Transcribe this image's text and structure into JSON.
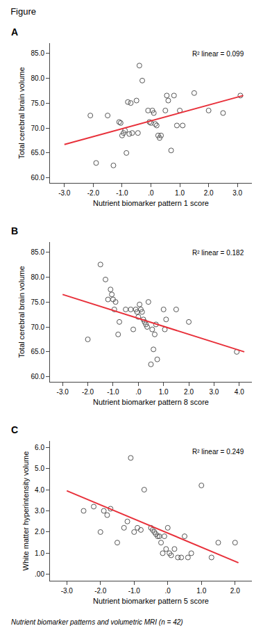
{
  "title": "Figure",
  "caption": "Nutrient biomarker patterns and volumetric MRI (n = 42)",
  "chart_data": [
    {
      "type": "scatter",
      "title": "A",
      "xlabel": "Nutrient biomarker pattern 1 score",
      "ylabel": "Total cerebral brain volume",
      "annotations": [
        "R² linear = 0.099"
      ],
      "grid": false,
      "legend": false,
      "xlim": [
        -3.5,
        3.5
      ],
      "ylim": [
        59.0,
        87.0
      ],
      "xticks": [
        {
          "value": -3.0,
          "label": "-3.0"
        },
        {
          "value": -2.0,
          "label": "-2.0"
        },
        {
          "value": -1.0,
          "label": "-1.0"
        },
        {
          "value": 0.0,
          "label": ".0"
        },
        {
          "value": 1.0,
          "label": "1.0"
        },
        {
          "value": 2.0,
          "label": "2.0"
        },
        {
          "value": 3.0,
          "label": "3.0"
        }
      ],
      "yticks": [
        {
          "value": 60.0,
          "label": "60.0"
        },
        {
          "value": 65.0,
          "label": "65.0"
        },
        {
          "value": 70.0,
          "label": "70.0"
        },
        {
          "value": 75.0,
          "label": "75.0"
        },
        {
          "value": 80.0,
          "label": "80.0"
        },
        {
          "value": 85.0,
          "label": "85.0"
        }
      ],
      "series": [
        {
          "type": "scatter",
          "marker": "circle-open",
          "color": "#555555",
          "x": [
            -2.1,
            -1.9,
            -1.5,
            -1.3,
            -1.1,
            -1.05,
            -1.0,
            -0.95,
            -0.9,
            -0.85,
            -0.8,
            -0.75,
            -0.7,
            -0.65,
            -0.5,
            -0.45,
            -0.4,
            -0.3,
            -0.1,
            -0.05,
            0.0,
            0.05,
            0.1,
            0.15,
            0.2,
            0.25,
            0.3,
            0.35,
            0.5,
            0.55,
            0.6,
            0.7,
            0.8,
            0.9,
            1.0,
            1.1,
            1.5,
            2.0,
            2.5,
            3.1
          ],
          "values": [
            72.5,
            63.0,
            72.5,
            62.5,
            71.2,
            71.0,
            68.5,
            69.0,
            69.5,
            65.0,
            75.2,
            68.8,
            75.0,
            69.0,
            75.5,
            69.0,
            82.5,
            79.5,
            73.5,
            71.2,
            71.0,
            73.5,
            73.0,
            70.8,
            70.5,
            68.5,
            68.0,
            68.5,
            73.5,
            76.5,
            75.5,
            65.5,
            76.5,
            70.5,
            73.5,
            70.5,
            77.0,
            73.5,
            73.0,
            76.5
          ]
        },
        {
          "type": "line",
          "line_style": "solid",
          "color": "#e8303a",
          "x": [
            -3.0,
            3.2
          ],
          "values": [
            66.7,
            76.5
          ]
        }
      ]
    },
    {
      "type": "scatter",
      "title": "B",
      "xlabel": "Nutrient biomarker pattern 8 score",
      "ylabel": "Total cerebral brain volume",
      "annotations": [
        "R² linear = 0.182"
      ],
      "grid": false,
      "legend": false,
      "xlim": [
        -3.5,
        4.5
      ],
      "ylim": [
        59.0,
        87.0
      ],
      "xticks": [
        {
          "value": -3.0,
          "label": "-3.0"
        },
        {
          "value": -2.0,
          "label": "-2.0"
        },
        {
          "value": -1.0,
          "label": "-1.0"
        },
        {
          "value": 0.0,
          "label": ".0"
        },
        {
          "value": 1.0,
          "label": "1.0"
        },
        {
          "value": 2.0,
          "label": "2.0"
        },
        {
          "value": 3.0,
          "label": "3.0"
        },
        {
          "value": 4.0,
          "label": "4.0"
        }
      ],
      "yticks": [
        {
          "value": 60.0,
          "label": "60.0"
        },
        {
          "value": 65.0,
          "label": "65.0"
        },
        {
          "value": 70.0,
          "label": "70.0"
        },
        {
          "value": 75.0,
          "label": "75.0"
        },
        {
          "value": 80.0,
          "label": "80.0"
        },
        {
          "value": 85.0,
          "label": "85.0"
        }
      ],
      "series": [
        {
          "type": "scatter",
          "marker": "circle-open",
          "color": "#555555",
          "x": [
            -2.0,
            -1.5,
            -1.3,
            -1.2,
            -1.1,
            -1.05,
            -1.0,
            -0.95,
            -0.9,
            -0.8,
            -0.75,
            -0.5,
            -0.3,
            -0.2,
            -0.1,
            -0.05,
            0.0,
            0.05,
            0.1,
            0.15,
            0.2,
            0.25,
            0.3,
            0.35,
            0.4,
            0.5,
            0.55,
            0.6,
            0.65,
            0.7,
            0.75,
            1.0,
            1.05,
            1.1,
            1.5,
            2.0,
            3.9
          ],
          "values": [
            67.5,
            82.5,
            79.5,
            75.5,
            77.5,
            76.5,
            75.5,
            73.5,
            75.0,
            68.5,
            71.0,
            73.5,
            73.5,
            69.5,
            73.5,
            73.0,
            72.0,
            74.5,
            73.5,
            73.0,
            71.5,
            71.0,
            70.5,
            70.0,
            75.0,
            62.5,
            69.5,
            65.5,
            68.5,
            70.5,
            63.5,
            73.5,
            69.5,
            71.5,
            73.5,
            71.0,
            65.0
          ]
        },
        {
          "type": "line",
          "line_style": "solid",
          "color": "#e8303a",
          "x": [
            -3.0,
            4.2
          ],
          "values": [
            76.5,
            65.0
          ]
        }
      ]
    },
    {
      "type": "scatter",
      "title": "C",
      "xlabel": "Nutrient biomarker pattern 5 score",
      "ylabel": "White matter hyperintensity volume",
      "annotations": [
        "R² linear = 0.249"
      ],
      "grid": false,
      "legend": false,
      "xlim": [
        -3.5,
        2.5
      ],
      "ylim": [
        -0.3,
        6.3
      ],
      "xticks": [
        {
          "value": -3.0,
          "label": "-3.0"
        },
        {
          "value": -2.0,
          "label": "-2.0"
        },
        {
          "value": -1.0,
          "label": "-1.0"
        },
        {
          "value": 0.0,
          "label": ".0"
        },
        {
          "value": 1.0,
          "label": "1.0"
        },
        {
          "value": 2.0,
          "label": "2.0"
        }
      ],
      "yticks": [
        {
          "value": 0.0,
          "label": ".00"
        },
        {
          "value": 1.0,
          "label": "1.0"
        },
        {
          "value": 2.0,
          "label": "2.0"
        },
        {
          "value": 3.0,
          "label": "3.0"
        },
        {
          "value": 4.0,
          "label": "4.0"
        },
        {
          "value": 5.0,
          "label": "5.0"
        },
        {
          "value": 6.0,
          "label": "6.0"
        }
      ],
      "series": [
        {
          "type": "scatter",
          "marker": "circle-open",
          "color": "#555555",
          "x": [
            -2.5,
            -2.2,
            -2.0,
            -1.9,
            -1.8,
            -1.7,
            -1.5,
            -1.3,
            -1.2,
            -1.1,
            -1.0,
            -0.9,
            -0.8,
            -0.7,
            -0.5,
            -0.45,
            -0.4,
            -0.35,
            -0.3,
            -0.25,
            -0.2,
            -0.15,
            -0.1,
            -0.05,
            0.0,
            0.05,
            0.1,
            0.2,
            0.3,
            0.4,
            0.5,
            0.6,
            0.7,
            1.0,
            1.3,
            1.5,
            2.0
          ],
          "values": [
            3.0,
            3.2,
            2.0,
            3.0,
            2.8,
            3.1,
            1.5,
            2.2,
            2.5,
            5.5,
            2.0,
            2.2,
            2.1,
            4.0,
            2.2,
            2.1,
            2.0,
            1.9,
            1.8,
            1.8,
            1.5,
            1.0,
            1.8,
            1.2,
            2.2,
            1.0,
            0.9,
            1.2,
            0.8,
            0.8,
            1.8,
            0.8,
            1.0,
            4.2,
            0.8,
            1.5,
            1.5
          ]
        },
        {
          "type": "line",
          "line_style": "solid",
          "color": "#e8303a",
          "x": [
            -3.0,
            2.1
          ],
          "values": [
            3.95,
            0.55
          ]
        }
      ]
    }
  ]
}
